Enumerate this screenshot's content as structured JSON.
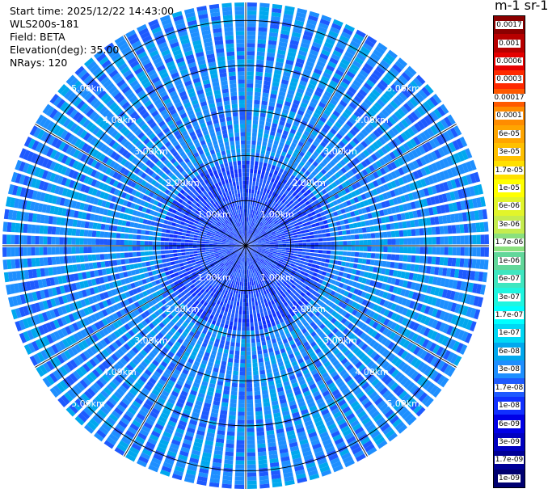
{
  "info": {
    "start_time": "Start time: 2025/12/22 14:43:00",
    "instrument": "WLS200s-181",
    "field": "Field: BETA",
    "elevation": "Elevation(deg): 35.00",
    "nrays": "NRays: 120"
  },
  "colorbar": {
    "unit_label": "m-1 sr-1",
    "levels": [
      {
        "label": "0.0017",
        "color": "#8b0000"
      },
      {
        "label": "0.001",
        "color": "#b80000"
      },
      {
        "label": "0.0006",
        "color": "#e60000"
      },
      {
        "label": "0.0003",
        "color": "#ff2a00"
      },
      {
        "label": "0.00017",
        "color": "#ff5a00"
      },
      {
        "label": "0.0001",
        "color": "#ff8c00"
      },
      {
        "label": "6e-05",
        "color": "#ffa500"
      },
      {
        "label": "3e-05",
        "color": "#ffc000"
      },
      {
        "label": "1.7e-05",
        "color": "#ffe000"
      },
      {
        "label": "1e-05",
        "color": "#ffff00"
      },
      {
        "label": "6e-06",
        "color": "#e2f52a"
      },
      {
        "label": "3e-06",
        "color": "#c5ec4f"
      },
      {
        "label": "1.7e-06",
        "color": "#8ae07e"
      },
      {
        "label": "1e-06",
        "color": "#62d79a"
      },
      {
        "label": "6e-07",
        "color": "#3fe6c0"
      },
      {
        "label": "3e-07",
        "color": "#1ff5e0"
      },
      {
        "label": "1.7e-07",
        "color": "#00ffff"
      },
      {
        "label": "1e-07",
        "color": "#00d8f5"
      },
      {
        "label": "6e-08",
        "color": "#00a8ee"
      },
      {
        "label": "3e-08",
        "color": "#1e8fff"
      },
      {
        "label": "1.7e-08",
        "color": "#1e5aff"
      },
      {
        "label": "1e-08",
        "color": "#1030ff"
      },
      {
        "label": "6e-09",
        "color": "#0000e6"
      },
      {
        "label": "3e-09",
        "color": "#0000c0"
      },
      {
        "label": "1.7e-09",
        "color": "#000096"
      },
      {
        "label": "1e-09",
        "color": "#000070"
      }
    ]
  },
  "chart_data": {
    "type": "heatmap",
    "projection": "polar-ppi",
    "field": "BETA",
    "elevation_deg": 35.0,
    "n_rays": 120,
    "max_range_km": 5.4,
    "range_rings_km": [
      1,
      2,
      3,
      4,
      5
    ],
    "range_labels": [
      "1.00km",
      "2.00km",
      "3.00km",
      "4.00km",
      "5.00km"
    ],
    "azimuth_lines_deg": [
      0,
      30,
      60,
      90,
      120,
      150,
      180,
      210,
      240,
      270,
      300,
      330
    ],
    "dominant_value_range": [
      "1.7e-08",
      "6e-08"
    ],
    "near_field_value_range": [
      "1e-08",
      "1.7e-08"
    ]
  }
}
